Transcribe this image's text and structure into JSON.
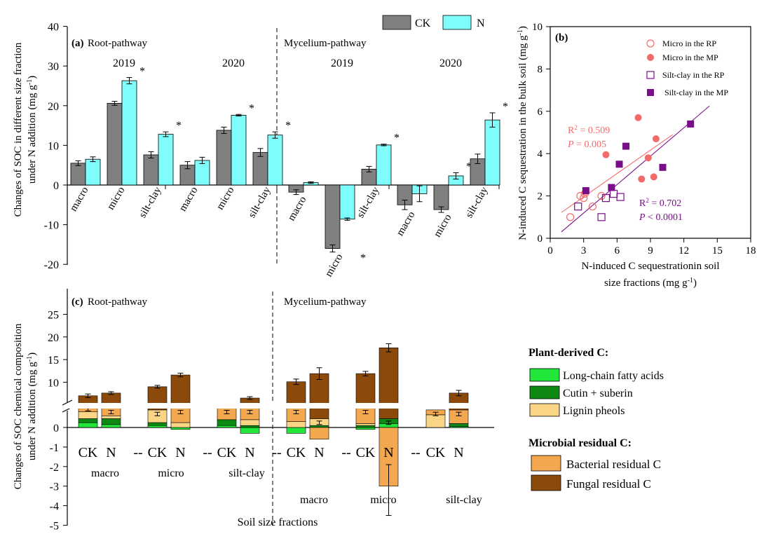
{
  "colors": {
    "ck": "#808080",
    "n": "#7ffcfc",
    "long_chain": "#22e63a",
    "cutin": "#0e8a14",
    "lignin": "#f9d585",
    "bacterial": "#f3a74f",
    "fungal": "#8b4a0a",
    "micro_mp": "#f26b6b",
    "silt_mp": "#7a0e8a"
  },
  "chart_data": [
    {
      "id": "a",
      "type": "bar",
      "panel_label": "(a)",
      "pathway_labels": [
        "Root-pathway",
        "Mycelium-pathway"
      ],
      "legend": [
        "CK",
        "N"
      ],
      "ylabel": "Changes of SOC in different size fraction under N addition (mg g⁻¹)",
      "ylim": [
        -20,
        40
      ],
      "yticks": [
        "-20",
        "-10",
        "0",
        "10",
        "20",
        "30",
        "40"
      ],
      "groups": [
        {
          "pathway": "Root-pathway",
          "year": "2019",
          "fractions": [
            "macro",
            "micro",
            "silt-clay"
          ],
          "ck": [
            5.5,
            20.6,
            7.6
          ],
          "n": [
            6.5,
            26.3,
            12.8
          ],
          "ck_err": [
            0.6,
            0.5,
            0.8
          ],
          "n_err": [
            0.6,
            0.8,
            0.6
          ],
          "sig": [
            "",
            "*",
            "*"
          ]
        },
        {
          "pathway": "Root-pathway",
          "year": "2020",
          "fractions": [
            "macro",
            "micro",
            "silt-clay"
          ],
          "ck": [
            5.0,
            13.8,
            8.2
          ],
          "n": [
            6.2,
            17.6,
            12.6
          ],
          "ck_err": [
            0.9,
            0.8,
            1.0
          ],
          "n_err": [
            0.8,
            0.2,
            0.8
          ],
          "sig": [
            "",
            "*",
            "*"
          ]
        },
        {
          "pathway": "Mycelium-pathway",
          "year": "2019",
          "fractions": [
            "macro",
            "micro",
            "silt-clay"
          ],
          "ck": [
            -1.8,
            -16.0,
            4.0
          ],
          "n": [
            0.6,
            -8.6,
            10.1
          ],
          "ck_err": [
            0.6,
            0.9,
            0.7
          ],
          "n_err": [
            0.2,
            0.3,
            0.2
          ],
          "sig": [
            "",
            "*",
            "*"
          ]
        },
        {
          "pathway": "Mycelium-pathway",
          "year": "2020",
          "fractions": [
            "macro",
            "micro",
            "silt-clay"
          ],
          "ck": [
            -5.0,
            -6.2,
            6.6
          ],
          "n": [
            -2.2,
            2.3,
            16.4
          ],
          "ck_err": [
            1.2,
            0.7,
            1.2
          ],
          "n_err": [
            2.0,
            0.8,
            1.8
          ],
          "sig": [
            "",
            "*",
            "*"
          ]
        }
      ]
    },
    {
      "id": "b",
      "type": "scatter",
      "panel_label": "(b)",
      "xlabel_line1": "N-induced C sequestrationin soil",
      "xlabel_line2": "size fractions (mg g⁻¹)",
      "ylabel": "N-induced C sequestration in the bulk soil (mg g⁻¹)",
      "xlim": [
        0,
        18
      ],
      "ylim": [
        0,
        10
      ],
      "xticks": [
        "0",
        "3",
        "6",
        "9",
        "12",
        "15",
        "18"
      ],
      "yticks": [
        "0",
        "2",
        "4",
        "6",
        "8",
        "10"
      ],
      "series": [
        {
          "name": "Micro in the RP",
          "marker": "open-circle",
          "points": [
            [
              1.8,
              1.0
            ],
            [
              2.7,
              2.0
            ],
            [
              3.0,
              1.9
            ],
            [
              3.1,
              2.1
            ],
            [
              3.8,
              1.5
            ],
            [
              4.6,
              2.0
            ]
          ]
        },
        {
          "name": "Micro in the MP",
          "marker": "filled-circle",
          "points": [
            [
              5.0,
              3.95
            ],
            [
              7.9,
              5.7
            ],
            [
              8.2,
              2.8
            ],
            [
              8.8,
              3.8
            ],
            [
              9.3,
              2.9
            ],
            [
              9.5,
              4.7
            ]
          ]
        },
        {
          "name": "Silt-clay in the RP",
          "marker": "open-square",
          "points": [
            [
              2.5,
              1.5
            ],
            [
              4.6,
              1.0
            ],
            [
              5.0,
              1.9
            ],
            [
              5.7,
              2.1
            ],
            [
              6.3,
              1.95
            ]
          ]
        },
        {
          "name": "Silt-clay in the MP",
          "marker": "filled-square",
          "points": [
            [
              3.2,
              2.25
            ],
            [
              5.5,
              2.4
            ],
            [
              6.2,
              3.5
            ],
            [
              6.8,
              4.35
            ],
            [
              10.1,
              3.35
            ],
            [
              12.6,
              5.4
            ]
          ]
        }
      ],
      "fits": [
        {
          "label_r2": "R",
          "r2": "= 0.509",
          "label_p": "P",
          "p": "= 0.005",
          "x": [
            1.0,
            11.0
          ],
          "y": [
            1.22,
            4.9
          ]
        },
        {
          "label_r2": "R",
          "r2": "= 0.702",
          "label_p": "P",
          "p": "< 0.0001",
          "x": [
            1.0,
            14.3
          ],
          "y": [
            0.3,
            6.25
          ]
        }
      ]
    },
    {
      "id": "c",
      "type": "stacked-bar",
      "panel_label": "(c)",
      "pathway_labels": [
        "Root-pathway",
        "Mycelium-pathway"
      ],
      "ylabel": "Changes of SOC chemical composition under N addition (mg g⁻¹)",
      "xlabel": "Soil size fractions",
      "upper_yticks": [
        "10",
        "15",
        "20",
        "25"
      ],
      "lower_yticks": [
        "-5",
        "-4",
        "-3",
        "-2",
        "-1",
        "0"
      ],
      "bar_labels": [
        "CK",
        "N"
      ],
      "separator": "--",
      "root_fractions": [
        "macro",
        "micro",
        "silt-clay"
      ],
      "mycelium_fractions": [
        "macro",
        "micro",
        "silt-clay"
      ],
      "components": [
        "Long-chain fatty acids",
        "Cutin + suberin",
        "Lignin pheols",
        "Bacterial residual C",
        "Fungal residual C"
      ],
      "bars": [
        {
          "fraction": "macro",
          "pathway": "RP",
          "treatment": "CK",
          "long_chain": 0.25,
          "cutin": 0.2,
          "lignin": 0.35,
          "bacterial": 0.35,
          "fungal_total": 7.0,
          "err": 0.4
        },
        {
          "fraction": "macro",
          "pathway": "RP",
          "treatment": "N",
          "long_chain": 0.15,
          "cutin": 0.3,
          "lignin": 0.15,
          "bacterial": 0.4,
          "fungal_total": 7.6,
          "err": 0.3
        },
        {
          "fraction": "micro",
          "pathway": "RP",
          "treatment": "CK",
          "long_chain": 0.1,
          "cutin": 0.15,
          "lignin": 0.65,
          "bacterial": 0.0,
          "fungal_total": 9.0,
          "err": 0.3
        },
        {
          "fraction": "micro",
          "pathway": "RP",
          "treatment": "N",
          "long_chain": -0.1,
          "cutin": 0.0,
          "lignin": 0.25,
          "bacterial": 0.75,
          "fungal_total": 11.6,
          "err": 0.4
        },
        {
          "fraction": "silt-clay",
          "pathway": "RP",
          "treatment": "CK",
          "long_chain": 0.1,
          "cutin": 0.3,
          "lignin": 0.0,
          "bacterial": 0.6,
          "fungal_total": 0.9,
          "err": 0.2
        },
        {
          "fraction": "silt-clay",
          "pathway": "RP",
          "treatment": "N",
          "long_chain": -0.3,
          "cutin": 0.1,
          "lignin": 0.3,
          "bacterial": 0.6,
          "fungal_total": 6.5,
          "err": 0.3
        },
        {
          "fraction": "macro",
          "pathway": "MP",
          "treatment": "CK",
          "long_chain": -0.3,
          "cutin": 0.0,
          "lignin": 0.3,
          "bacterial": 0.7,
          "fungal_total": 10.1,
          "err": 0.6
        },
        {
          "fraction": "macro",
          "pathway": "MP",
          "treatment": "N",
          "long_chain": 0.0,
          "cutin": 0.1,
          "lignin": 0.35,
          "bacterial": -0.6,
          "fungal_total": 11.9,
          "err": 1.3
        },
        {
          "fraction": "micro",
          "pathway": "MP",
          "treatment": "CK",
          "long_chain": -0.1,
          "cutin": 0.1,
          "lignin": 0.1,
          "bacterial": 0.8,
          "fungal_total": 11.9,
          "err": 0.5
        },
        {
          "fraction": "micro",
          "pathway": "MP",
          "treatment": "N",
          "long_chain": 0.2,
          "cutin": 0.25,
          "lignin": 0.0,
          "bacterial": -3.0,
          "fungal_total": 17.6,
          "err": 0.9
        },
        {
          "fraction": "silt-clay",
          "pathway": "MP",
          "treatment": "CK",
          "long_chain": 0.0,
          "cutin": 0.0,
          "lignin": 0.65,
          "bacterial": 0.25,
          "fungal_total": 0.9,
          "err": 0.1
        },
        {
          "fraction": "silt-clay",
          "pathway": "MP",
          "treatment": "N",
          "long_chain": 0.05,
          "cutin": 0.15,
          "lignin": 0.0,
          "bacterial": 0.7,
          "fungal_total": 7.6,
          "err": 0.6
        }
      ]
    }
  ],
  "legend_c": {
    "plant_title": "Plant-derived C:",
    "plant_items": [
      "Long-chain fatty acids",
      "Cutin + suberin",
      "Lignin pheols"
    ],
    "micro_title": "Microbial residual C:",
    "micro_items": [
      "Bacterial residual C",
      "Fungal residual C"
    ]
  }
}
